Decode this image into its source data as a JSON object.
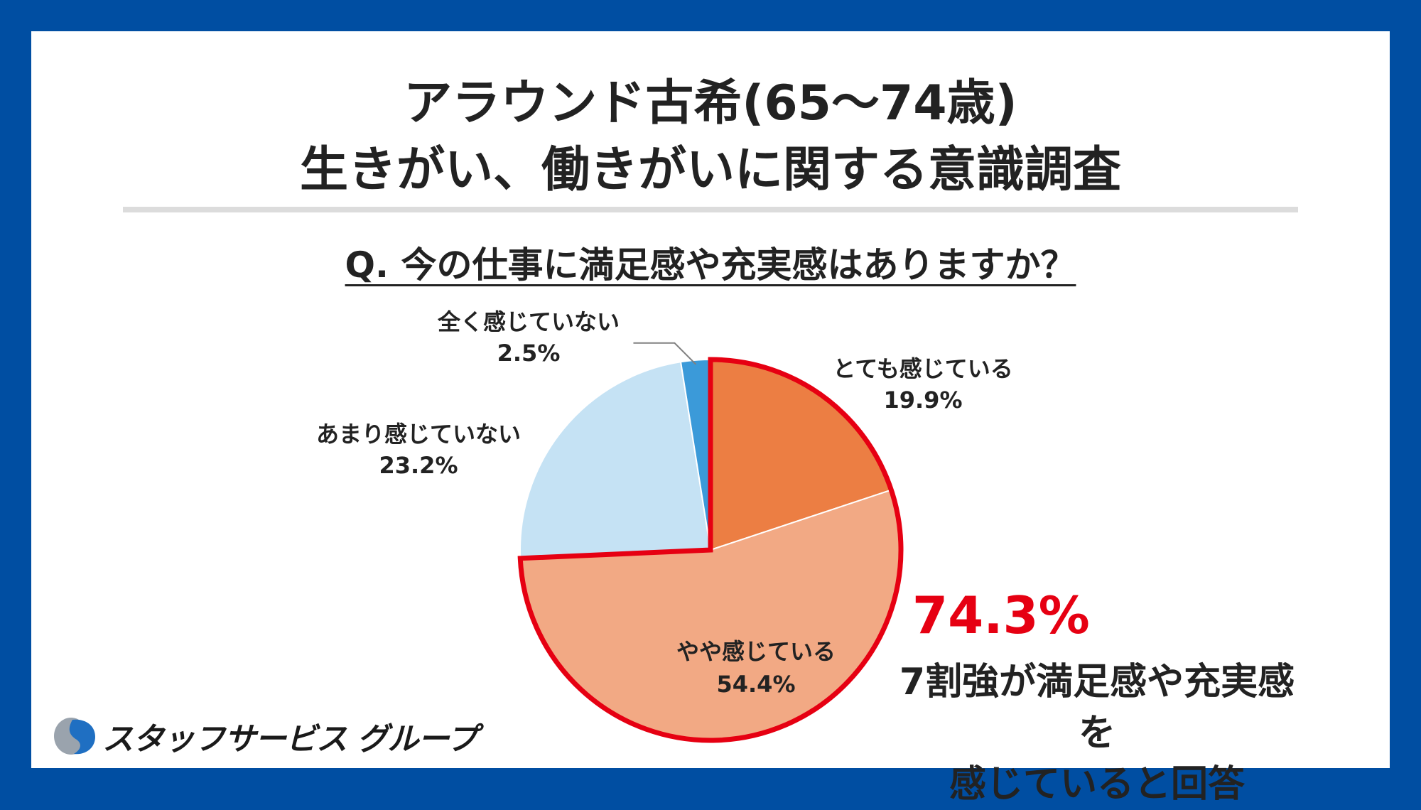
{
  "title_lines": [
    "アラウンド古希(65〜74歳)",
    "生きがい、働きがいに関する意識調査"
  ],
  "question": "Q. 今の仕事に満足感や充実感はありますか？",
  "chart_data": {
    "type": "pie",
    "start_angle_deg": 0,
    "direction": "clockwise",
    "slices": [
      {
        "label": "とても感じている",
        "value": 19.9,
        "value_text": "19.9%",
        "color": "#ec7e43"
      },
      {
        "label": "やや感じている",
        "value": 54.4,
        "value_text": "54.4%",
        "color": "#f2a984"
      },
      {
        "label": "あまり感じていない",
        "value": 23.2,
        "value_text": "23.2%",
        "color": "#c5e2f4"
      },
      {
        "label": "全く感じていない",
        "value": 2.5,
        "value_text": "2.5%",
        "color": "#3b9ad9"
      }
    ],
    "highlight": {
      "slices": [
        0,
        1
      ],
      "color": "#e60012",
      "value_text": "74.3%"
    }
  },
  "summary_lines": [
    "7割強が満足感や充実感を",
    "感じていると回答"
  ],
  "logo": {
    "text": "スタッフサービス グループ",
    "mark_color": "#1f6fc2",
    "mark_gray": "#9aa3ad"
  }
}
